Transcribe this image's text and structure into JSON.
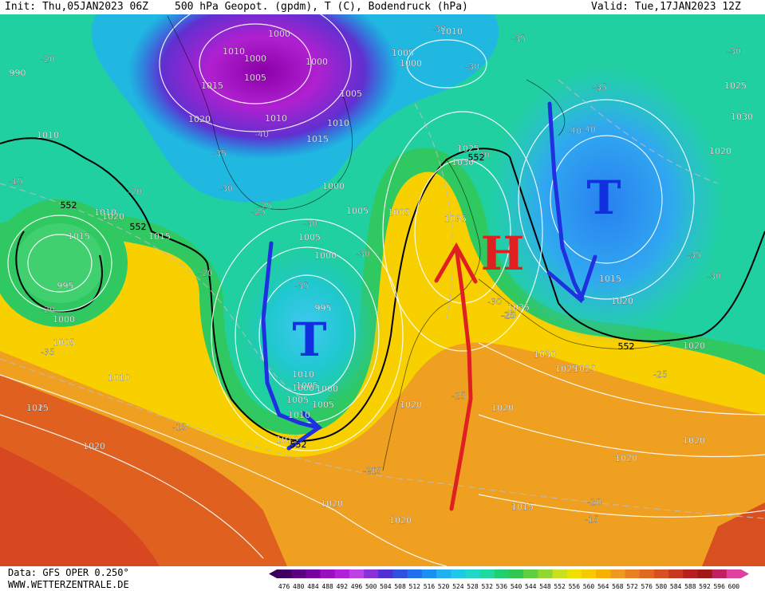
{
  "header": {
    "init": "Init: Thu,05JAN2023 06Z",
    "title": "500 hPa Geopot. (gpdm), T (C), Bodendruck (hPa)",
    "valid": "Valid: Tue,17JAN2023 12Z"
  },
  "footer": {
    "data_source": "Data: GFS OPER 0.250°",
    "website": "WWW.WETTERZENTRALE.DE"
  },
  "legend": {
    "values": [
      "476",
      "480",
      "484",
      "488",
      "492",
      "496",
      "500",
      "504",
      "508",
      "512",
      "516",
      "520",
      "524",
      "528",
      "532",
      "536",
      "540",
      "544",
      "548",
      "552",
      "556",
      "560",
      "564",
      "568",
      "572",
      "576",
      "580",
      "584",
      "588",
      "592",
      "596",
      "600"
    ],
    "colors": [
      "#3d0060",
      "#5a0080",
      "#7a00a0",
      "#9a10c0",
      "#b020d8",
      "#c040e8",
      "#8a30d8",
      "#5030d0",
      "#3050e0",
      "#2070f0",
      "#1890f0",
      "#20b0f0",
      "#20c8e8",
      "#20d8c8",
      "#20d8a0",
      "#20d070",
      "#30c850",
      "#60d040",
      "#90d830",
      "#c8e020",
      "#f0e000",
      "#f8c800",
      "#f8b000",
      "#f09820",
      "#e88020",
      "#e06820",
      "#d85020",
      "#c83820",
      "#b82020",
      "#a01818",
      "#c02060",
      "#e040a0"
    ]
  },
  "pressure_systems": [
    {
      "symbol": "T",
      "type": "low",
      "color": "#1030e0"
    },
    {
      "symbol": "T",
      "type": "low",
      "color": "#1030e0"
    },
    {
      "symbol": "H",
      "type": "high",
      "color": "#e02020"
    }
  ],
  "isobar_labels": [
    "1000",
    "1010",
    "1000",
    "1005",
    "1000",
    "1005",
    "1015",
    "1020",
    "990",
    "1010",
    "1015",
    "1005",
    "1010",
    "1000",
    "1010",
    "1005",
    "1000",
    "1005",
    "1015",
    "1010",
    "1020",
    "995",
    "1000",
    "1005",
    "1015",
    "1025",
    "1030",
    "1035",
    "1035",
    "1030",
    "1025",
    "1020",
    "1020",
    "1025",
    "1020",
    "1030",
    "1025",
    "1020",
    "1015",
    "1020",
    "1020",
    "1020",
    "1015",
    "1020",
    "1010",
    "1000",
    "1005",
    "1010",
    "1005",
    "1015",
    "1020",
    "1025",
    "1020",
    "995",
    "1000",
    "1005",
    "1010",
    "1015",
    "1000",
    "1005",
    "1010"
  ],
  "temperature_labels": [
    "-20",
    "-35",
    "-30",
    "-35",
    "-30",
    "-30",
    "-20",
    "-15",
    "-20",
    "-35",
    "-40",
    "-25",
    "-30",
    "-25",
    "-30",
    "-35",
    "-40",
    "-40",
    "-35",
    "-30",
    "-25",
    "-25",
    "-20",
    "-15",
    "-20",
    "-20",
    "-15",
    "-25",
    "-20",
    "-30",
    "-15",
    "-35",
    "-40",
    "-30"
  ],
  "height_labels": [
    "552",
    "552",
    "552",
    "552",
    "552"
  ]
}
